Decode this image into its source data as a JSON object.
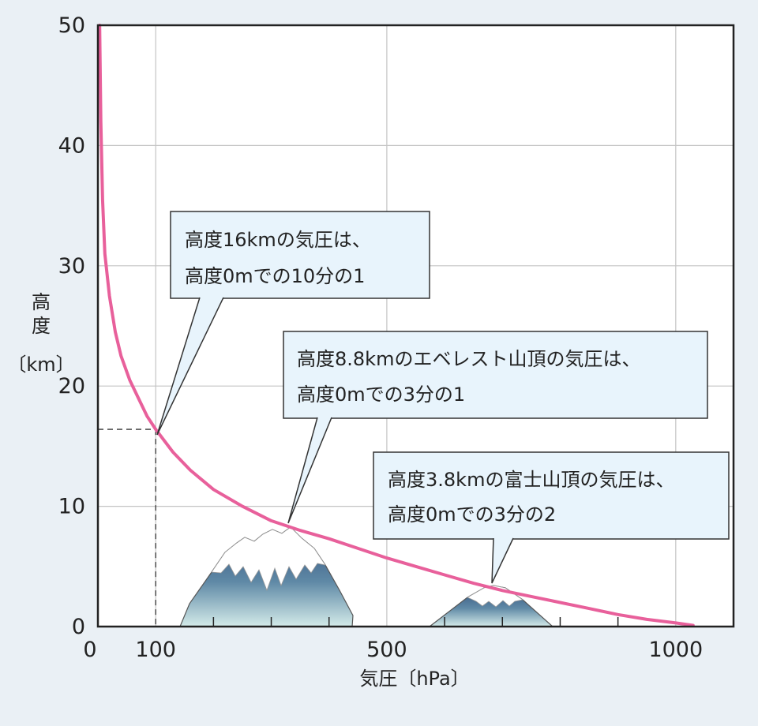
{
  "chart_data": {
    "type": "line",
    "xlabel": "気圧〔hPa〕",
    "ylabel": [
      "高",
      "度",
      "〔km〕"
    ],
    "xlim": [
      0,
      1100
    ],
    "ylim": [
      0,
      50
    ],
    "x_ticks": [
      0,
      100,
      500,
      1000
    ],
    "x_minor_ticks": [
      200,
      300,
      400,
      600,
      700,
      800,
      900
    ],
    "y_ticks": [
      0,
      10,
      20,
      30,
      40,
      50
    ],
    "grid": true,
    "series": [
      {
        "color": "#e8609b",
        "x": [
          3,
          5,
          8,
          12,
          20,
          30,
          40,
          55,
          70,
          85,
          100,
          130,
          160,
          200,
          250,
          300,
          350,
          400,
          450,
          500,
          550,
          600,
          650,
          700,
          750,
          800,
          850,
          900,
          950,
          1000,
          1030
        ],
        "y": [
          50.0,
          42.0,
          35.5,
          31.0,
          27.5,
          24.5,
          22.5,
          20.5,
          19.0,
          17.5,
          16.4,
          14.5,
          13.0,
          11.4,
          10.0,
          8.8,
          8.0,
          7.3,
          6.5,
          5.7,
          5.0,
          4.3,
          3.6,
          3.0,
          2.5,
          2.0,
          1.5,
          1.0,
          0.6,
          0.3,
          0.1
        ]
      }
    ],
    "reference_point": {
      "x": 100,
      "y": 16.4
    },
    "annotations": [
      {
        "lines": [
          "高度16kmの気圧は、",
          "高度0mでの10分の1"
        ],
        "target": {
          "x": 100,
          "y": 16.4
        }
      },
      {
        "lines": [
          "高度8.8kmのエベレスト山頂の気圧は、",
          "高度0mでの3分の1"
        ],
        "target": {
          "x": 335,
          "y": 8.6
        }
      },
      {
        "lines": [
          "高度3.8kmの富士山頂の気圧は、",
          "高度0mでの3分の2"
        ],
        "target": {
          "x": 680,
          "y": 3.7
        }
      }
    ],
    "colors": {
      "curve": "#e8609b",
      "callout_fill": "#e8f4fc",
      "background": "#eaf0f5",
      "plot_background": "#ffffff",
      "mountain_dark": "#2f4d7a",
      "mountain_light": "#cfe6e6"
    }
  }
}
